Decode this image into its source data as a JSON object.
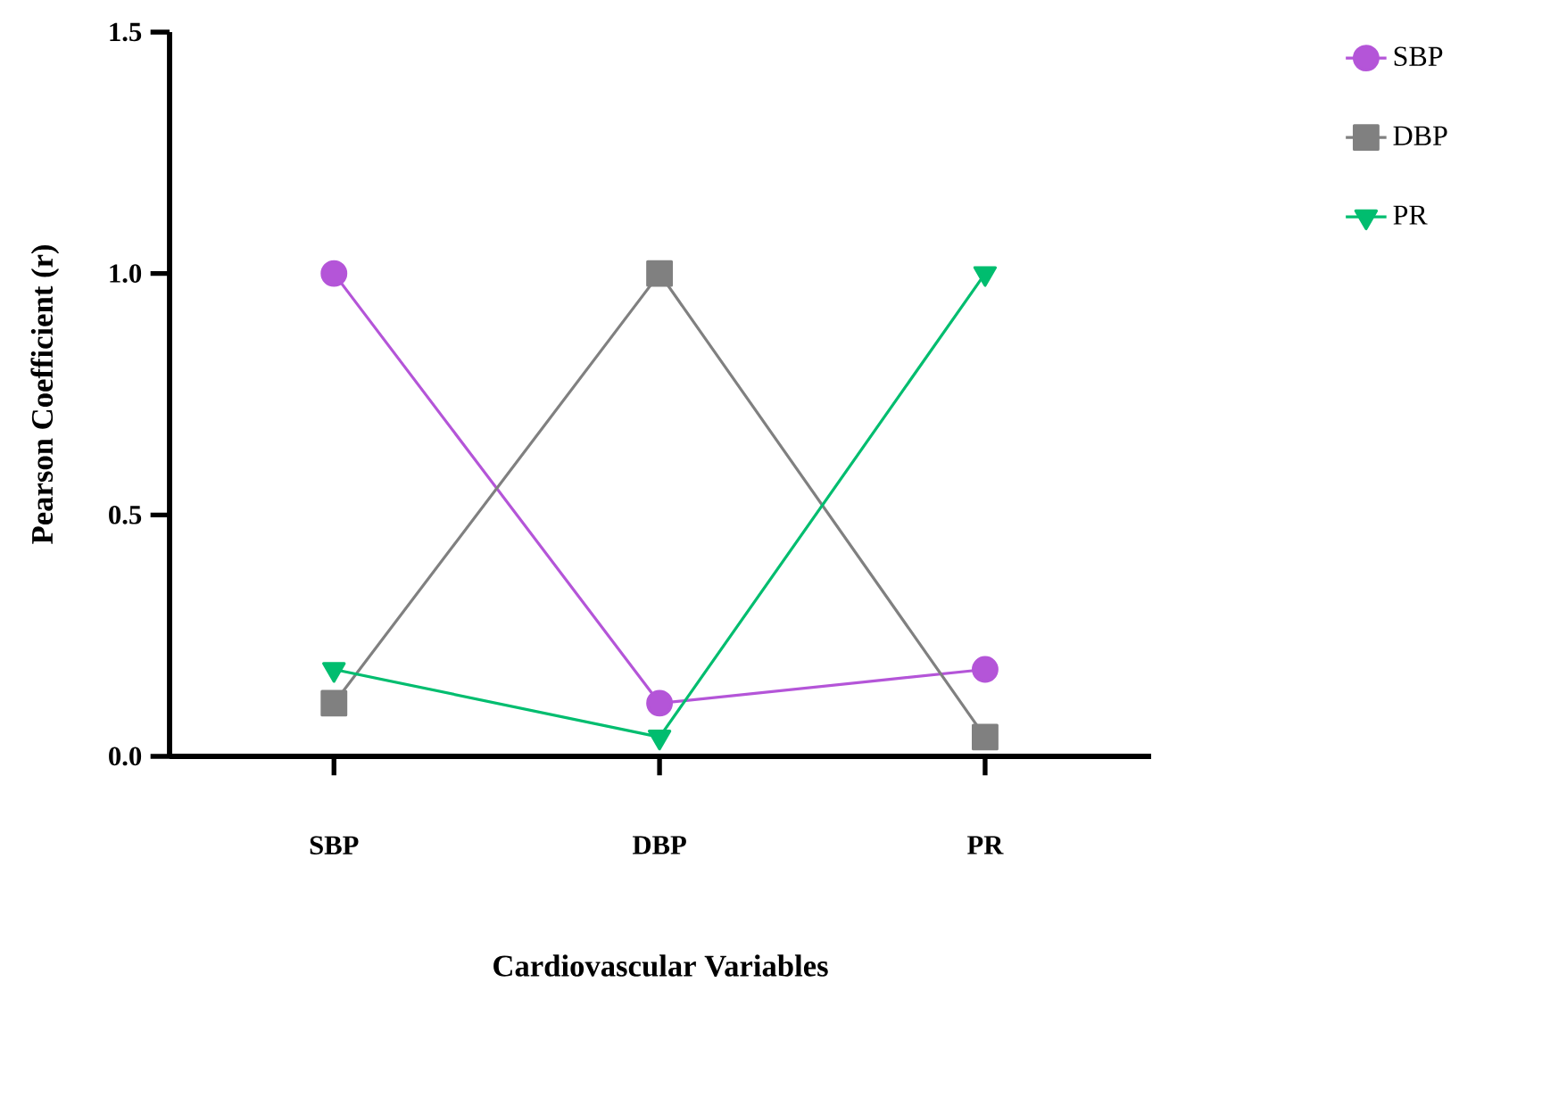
{
  "chart_data": {
    "type": "line",
    "xlabel": "Cardiovascular Variables",
    "ylabel": "Pearson Coefficient (r)",
    "categories": [
      "SBP",
      "DBP",
      "PR"
    ],
    "series": [
      {
        "name": "SBP",
        "color": "#b455d8",
        "marker": "circle",
        "values": [
          1.0,
          0.11,
          0.18
        ]
      },
      {
        "name": "DBP",
        "color": "#808080",
        "marker": "square",
        "values": [
          0.11,
          1.0,
          0.04
        ]
      },
      {
        "name": "PR",
        "color": "#00bd6f",
        "marker": "triangle-down",
        "values": [
          0.18,
          0.04,
          1.0
        ]
      }
    ],
    "ylim": [
      0,
      1.5
    ],
    "yticks": [
      {
        "value": 0,
        "label": "0.0"
      },
      0.5,
      {
        "value": 1,
        "label": "1.0"
      },
      1.5
    ],
    "legend": "top right",
    "line_style": "solid"
  }
}
